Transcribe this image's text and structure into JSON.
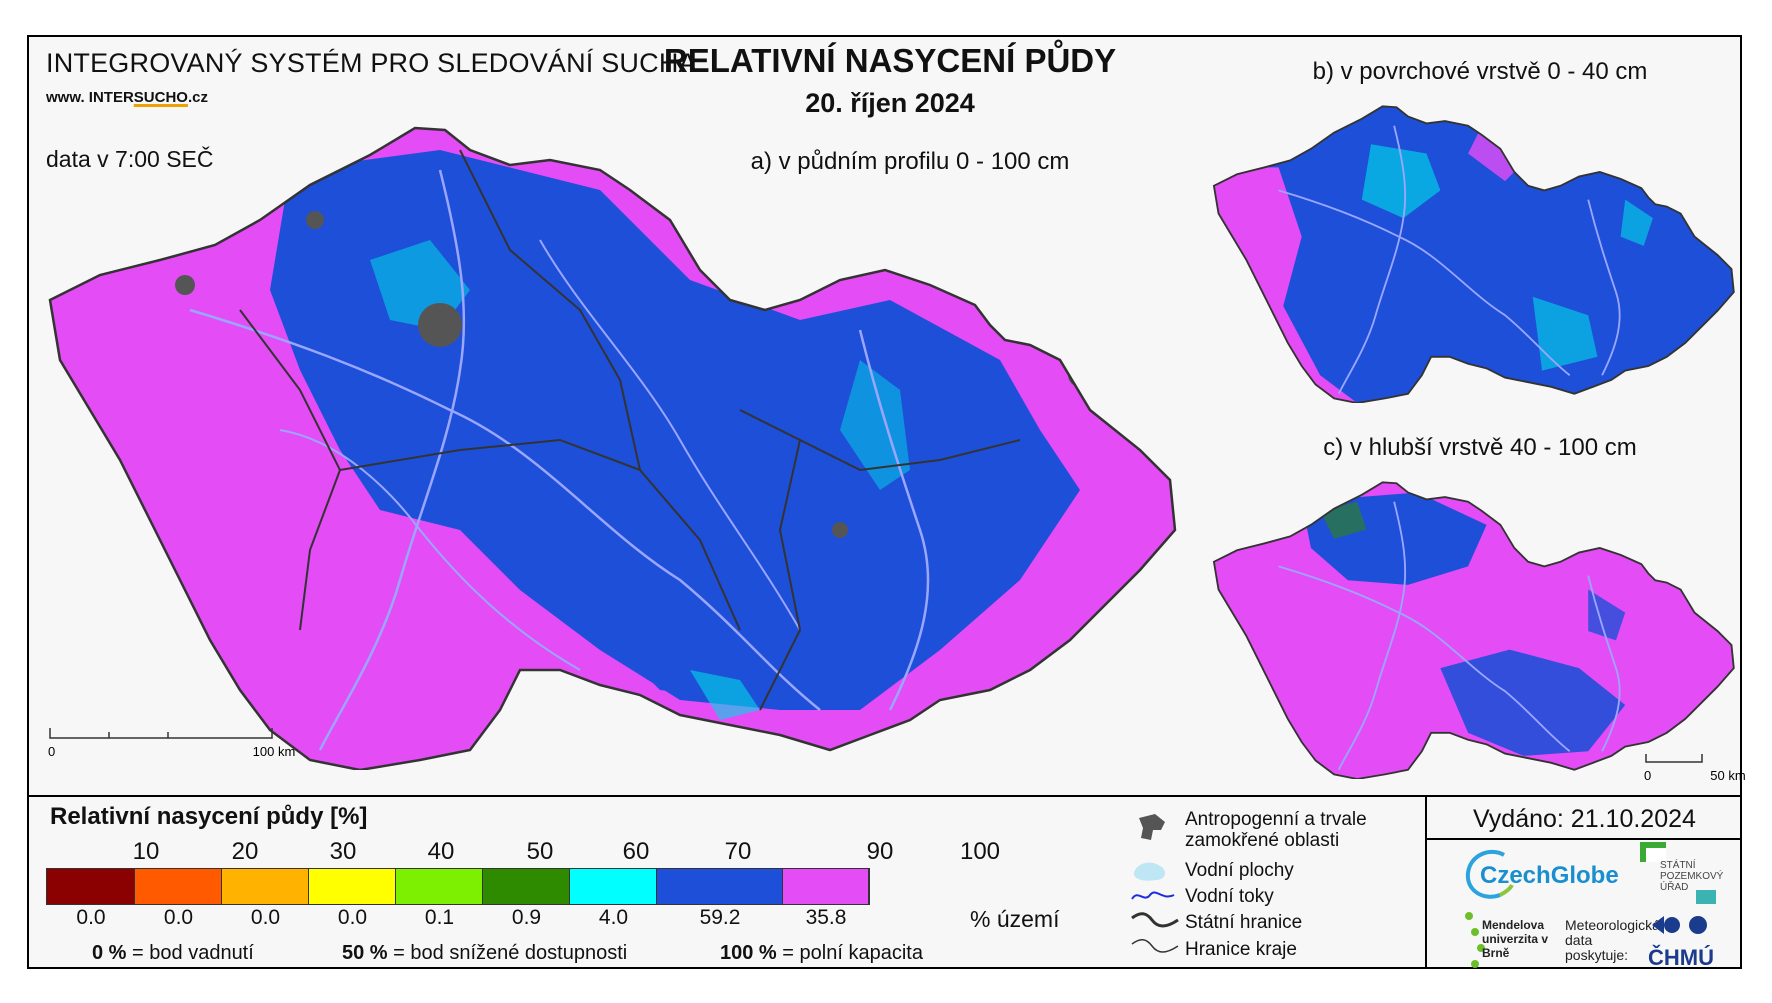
{
  "header": {
    "organization": "INTEGROVANÝ SYSTÉM PRO SLEDOVÁNÍ SUCHA",
    "website_prefix": "www. INTER",
    "website_highlight": "SUCHO",
    "website_suffix": ".cz",
    "data_time": "data v 7:00 SEČ",
    "title": "RELATIVNÍ NASYCENÍ PŮDY",
    "date": "20. říjen 2024"
  },
  "maps": {
    "main_caption": "a) v půdním profilu 0 - 100 cm",
    "surface_caption": "b) v povrchové vrstvě 0 - 40 cm",
    "deep_caption": "c) v hlubší vrstvě 40 - 100 cm",
    "main_scale": {
      "start": "0",
      "end": "100 km"
    },
    "small_scale": {
      "start": "0",
      "end": "50 km"
    }
  },
  "legend": {
    "title": "Relativní nasycení půdy [%]",
    "ticks": [
      "10",
      "20",
      "30",
      "40",
      "50",
      "60",
      "70",
      "90",
      "100"
    ],
    "classes": [
      {
        "color": "#8b0000",
        "share": "0.0"
      },
      {
        "color": "#ff5a00",
        "share": "0.0"
      },
      {
        "color": "#ffb300",
        "share": "0.0"
      },
      {
        "color": "#ffff00",
        "share": "0.0"
      },
      {
        "color": "#7cf000",
        "share": "0.1"
      },
      {
        "color": "#2e8b00",
        "share": "0.9"
      },
      {
        "color": "#00ffff",
        "share": "4.0"
      },
      {
        "color": "#1e4fd8",
        "share": "59.2"
      },
      {
        "color": "#e44cf6",
        "share": "35.8"
      }
    ],
    "share_unit": "% území",
    "notes": [
      {
        "value": "0 %",
        "text": "= bod vadnutí"
      },
      {
        "value": "50 %",
        "text": "= bod snížené dostupnosti"
      },
      {
        "value": "100 %",
        "text": "= polní kapacita"
      }
    ]
  },
  "map_legend": {
    "anthropogenic": "Antropogenní a trvale zamokřené oblasti",
    "water_bodies": "Vodní plochy",
    "rivers": "Vodní toky",
    "state_border": "Státní hranice",
    "region_border": "Hranice kraje"
  },
  "issued": "Vydáno: 21.10.2024",
  "logos": {
    "czechglobe": "CzechGlobe",
    "spu": "STÁTNÍ POZEMKOVÝ ÚŘAD",
    "mendel": "Mendelova univerzita v Brně",
    "met_data": "Meteorologická data poskytuje:",
    "chmu": "ČHMÚ"
  },
  "colors": {
    "high_saturation": "#e44cf6",
    "mid_saturation": "#1e4fd8",
    "cyan": "#00ffff",
    "river": "#9aa6ff",
    "anthropogenic": "#555555"
  }
}
